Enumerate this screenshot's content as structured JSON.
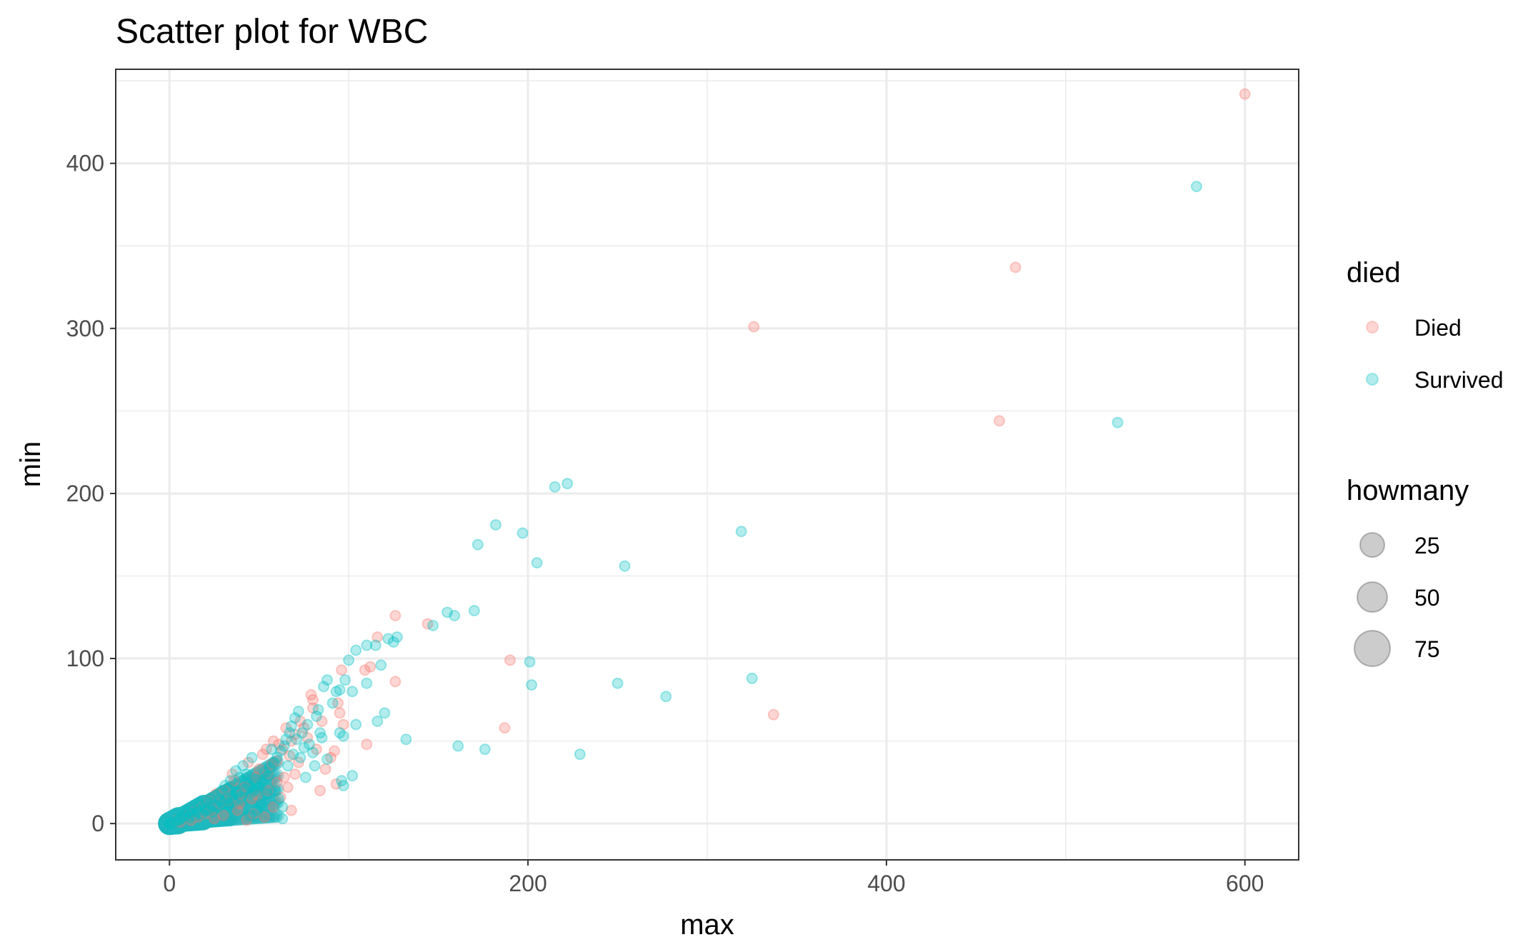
{
  "chart_data": {
    "type": "scatter",
    "title": "Scatter plot for WBC",
    "xlabel": "max",
    "ylabel": "min",
    "xlim": [
      -30,
      630
    ],
    "ylim": [
      -22,
      457
    ],
    "x_ticks": [
      0,
      200,
      400,
      600
    ],
    "y_ticks": [
      0,
      100,
      200,
      300,
      400
    ],
    "grid": true,
    "legend_position": "right",
    "color_legend": {
      "title": "died",
      "entries": [
        {
          "label": "Died",
          "color": "#F8766D"
        },
        {
          "label": "Survived",
          "color": "#00BFC4"
        }
      ]
    },
    "size_legend": {
      "title": "howmany",
      "entries": [
        25,
        50,
        75
      ]
    },
    "series": [
      {
        "name": "Died",
        "color": "#F8766D",
        "points": [
          [
            600,
            442
          ],
          [
            472,
            337
          ],
          [
            326,
            301
          ],
          [
            463,
            244
          ],
          [
            337,
            66
          ],
          [
            190,
            99
          ],
          [
            187,
            58
          ],
          [
            126,
            126
          ],
          [
            126,
            86
          ],
          [
            144,
            121
          ],
          [
            116,
            113
          ],
          [
            112,
            95
          ],
          [
            109,
            93
          ],
          [
            110,
            48
          ],
          [
            96,
            93
          ],
          [
            97,
            60
          ],
          [
            94,
            73
          ],
          [
            95,
            67
          ],
          [
            93,
            24
          ],
          [
            92,
            44
          ],
          [
            90,
            40
          ],
          [
            85,
            62
          ],
          [
            80,
            75
          ],
          [
            79,
            78
          ],
          [
            80,
            70
          ],
          [
            75,
            58
          ],
          [
            73,
            62
          ],
          [
            70,
            54
          ],
          [
            68,
            50
          ],
          [
            65,
            58
          ],
          [
            63,
            45
          ],
          [
            60,
            38
          ],
          [
            58,
            50
          ],
          [
            55,
            30
          ],
          [
            70,
            30
          ],
          [
            72,
            37
          ],
          [
            66,
            22
          ],
          [
            62,
            16
          ],
          [
            60,
            25
          ],
          [
            58,
            10
          ],
          [
            55,
            20
          ],
          [
            52,
            42
          ],
          [
            50,
            33
          ],
          [
            48,
            28
          ],
          [
            46,
            15
          ],
          [
            44,
            37
          ],
          [
            42,
            22
          ],
          [
            40,
            18
          ],
          [
            38,
            8
          ],
          [
            36,
            26
          ],
          [
            35,
            30
          ],
          [
            33,
            14
          ],
          [
            31,
            20
          ],
          [
            30,
            5
          ],
          [
            28,
            12
          ],
          [
            26,
            18
          ],
          [
            25,
            3
          ],
          [
            24,
            9
          ],
          [
            22,
            14
          ],
          [
            20,
            6
          ],
          [
            18,
            10
          ],
          [
            16,
            4
          ],
          [
            14,
            8
          ],
          [
            12,
            2
          ],
          [
            10,
            5
          ],
          [
            8,
            3
          ],
          [
            6,
            1
          ],
          [
            4,
            2
          ],
          [
            3,
            1
          ],
          [
            82,
            45
          ],
          [
            77,
            52
          ],
          [
            87,
            33
          ],
          [
            84,
            20
          ],
          [
            67,
            41
          ],
          [
            64,
            28
          ],
          [
            68,
            8
          ],
          [
            54,
            45
          ],
          [
            57,
            36
          ],
          [
            47,
            6
          ],
          [
            43,
            2
          ],
          [
            39,
            12
          ],
          [
            49,
            17
          ],
          [
            53,
            4
          ],
          [
            61,
            48
          ]
        ]
      },
      {
        "name": "Survived",
        "color": "#00BFC4",
        "points": [
          [
            573,
            386
          ],
          [
            529,
            243
          ],
          [
            319,
            177
          ],
          [
            325,
            88
          ],
          [
            250,
            85
          ],
          [
            277,
            77
          ],
          [
            229,
            42
          ],
          [
            254,
            156
          ],
          [
            215,
            204
          ],
          [
            222,
            206
          ],
          [
            182,
            181
          ],
          [
            197,
            176
          ],
          [
            205,
            158
          ],
          [
            201,
            98
          ],
          [
            202,
            84
          ],
          [
            172,
            169
          ],
          [
            170,
            129
          ],
          [
            161,
            47
          ],
          [
            176,
            45
          ],
          [
            155,
            128
          ],
          [
            159,
            126
          ],
          [
            147,
            120
          ],
          [
            132,
            51
          ],
          [
            125,
            110
          ],
          [
            127,
            113
          ],
          [
            122,
            112
          ],
          [
            115,
            108
          ],
          [
            110,
            108
          ],
          [
            118,
            96
          ],
          [
            120,
            67
          ],
          [
            116,
            62
          ],
          [
            110,
            85
          ],
          [
            104,
            105
          ],
          [
            102,
            80
          ],
          [
            104,
            60
          ],
          [
            102,
            29
          ],
          [
            97,
            23
          ],
          [
            96,
            26
          ],
          [
            98,
            87
          ],
          [
            95,
            81
          ],
          [
            93,
            80
          ],
          [
            100,
            99
          ],
          [
            91,
            73
          ],
          [
            97,
            53
          ],
          [
            95,
            55
          ],
          [
            88,
            87
          ],
          [
            86,
            83
          ],
          [
            85,
            52
          ],
          [
            84,
            55
          ],
          [
            83,
            69
          ],
          [
            82,
            65
          ],
          [
            88,
            39
          ],
          [
            80,
            43
          ],
          [
            78,
            48
          ],
          [
            75,
            46
          ],
          [
            74,
            55
          ],
          [
            72,
            68
          ],
          [
            70,
            64
          ],
          [
            68,
            59
          ],
          [
            67,
            55
          ],
          [
            65,
            51
          ],
          [
            64,
            47
          ],
          [
            62,
            44
          ],
          [
            60,
            40
          ],
          [
            61,
            15
          ],
          [
            63,
            3
          ],
          [
            63,
            10
          ],
          [
            58,
            37
          ],
          [
            56,
            34
          ],
          [
            55,
            29
          ],
          [
            53,
            31
          ],
          [
            52,
            25
          ],
          [
            50,
            22
          ],
          [
            48,
            27
          ],
          [
            47,
            20
          ],
          [
            45,
            18
          ],
          [
            44,
            24
          ],
          [
            42,
            21
          ],
          [
            40,
            16
          ],
          [
            38,
            19
          ],
          [
            36,
            13
          ],
          [
            35,
            17
          ],
          [
            33,
            11
          ],
          [
            32,
            15
          ],
          [
            30,
            12
          ],
          [
            28,
            14
          ],
          [
            27,
            10
          ],
          [
            25,
            11
          ],
          [
            24,
            7
          ],
          [
            22,
            9
          ],
          [
            20,
            8
          ],
          [
            19,
            10
          ],
          [
            18,
            6
          ],
          [
            16,
            7
          ],
          [
            15,
            9
          ],
          [
            14,
            5
          ],
          [
            13,
            8
          ],
          [
            12,
            6
          ],
          [
            11,
            4
          ],
          [
            10,
            7
          ],
          [
            9,
            5
          ],
          [
            8,
            3
          ],
          [
            7,
            4
          ],
          [
            6,
            3
          ],
          [
            5,
            2
          ],
          [
            4,
            2
          ],
          [
            3,
            1
          ],
          [
            2,
            1
          ],
          [
            1,
            0
          ],
          [
            0,
            0
          ],
          [
            71,
            51
          ],
          [
            77,
            60
          ],
          [
            66,
            35
          ],
          [
            57,
            45
          ],
          [
            54,
            18
          ],
          [
            49,
            8
          ],
          [
            46,
            40
          ],
          [
            43,
            30
          ],
          [
            41,
            35
          ],
          [
            39,
            28
          ],
          [
            37,
            32
          ],
          [
            34,
            26
          ],
          [
            31,
            23
          ],
          [
            29,
            20
          ],
          [
            26,
            17
          ],
          [
            23,
            15
          ],
          [
            21,
            13
          ],
          [
            17,
            11
          ],
          [
            81,
            35
          ],
          [
            76,
            28
          ],
          [
            73,
            40
          ],
          [
            69,
            42
          ],
          [
            59,
            20
          ],
          [
            51,
            12
          ],
          [
            45,
            5
          ]
        ]
      }
    ],
    "dense_cluster": {
      "series": "Survived",
      "color": "#1CB8BE",
      "x_range": [
        0,
        60
      ],
      "note": "dense overplotted region near origin"
    }
  }
}
